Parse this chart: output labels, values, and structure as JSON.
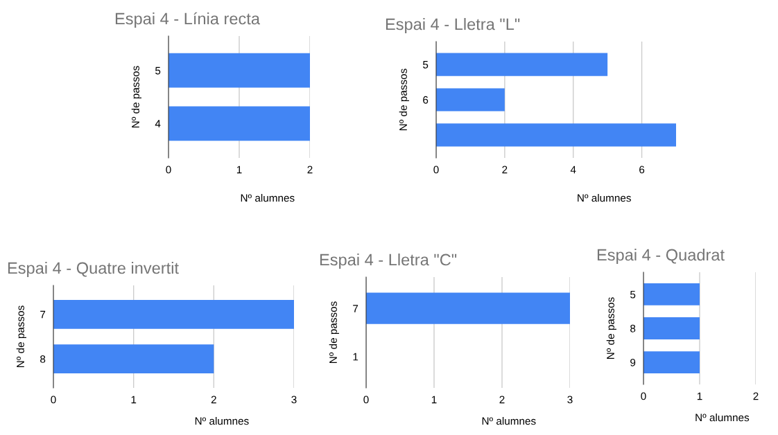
{
  "chart_data": [
    {
      "type": "bar",
      "orientation": "horizontal",
      "title": "Espai 4 - Línia recta",
      "xlabel": "Nº alumnes",
      "ylabel": "Nº de passos",
      "categories": [
        "5",
        "4"
      ],
      "values": [
        2,
        2
      ],
      "color": "#4285f4",
      "xlim": [
        0,
        2
      ],
      "xticks": [
        0,
        1,
        2
      ],
      "grid": "x"
    },
    {
      "type": "bar",
      "orientation": "horizontal",
      "title": "Espai 4 - Lletra \"L\"",
      "xlabel": "Nº alumnes",
      "ylabel": "Nº de passos",
      "categories": [
        "5",
        "6",
        null
      ],
      "values": [
        5,
        2,
        7
      ],
      "color": "#4285f4",
      "xlim": [
        0,
        7
      ],
      "xticks": [
        0,
        2,
        4,
        6
      ],
      "grid": "x"
    },
    {
      "type": "bar",
      "orientation": "horizontal",
      "title": "Espai 4 - Quatre invertit",
      "xlabel": "Nº alumnes",
      "ylabel": "Nº de passos",
      "categories": [
        "7",
        "8"
      ],
      "values": [
        3,
        2
      ],
      "color": "#4285f4",
      "xlim": [
        0,
        3
      ],
      "xticks": [
        0,
        1,
        2,
        3
      ],
      "grid": "x"
    },
    {
      "type": "bar",
      "orientation": "horizontal",
      "title": "Espai 4 - Lletra \"C\"",
      "xlabel": "Nº alumnes",
      "ylabel": "Nº de passos",
      "categories": [
        "7",
        "1"
      ],
      "values": [
        3,
        0
      ],
      "color": "#4285f4",
      "xlim": [
        0,
        3
      ],
      "xticks": [
        0,
        1,
        2,
        3
      ],
      "grid": "x"
    },
    {
      "type": "bar",
      "orientation": "horizontal",
      "title": "Espai 4 - Quadrat",
      "xlabel": "Nº alumnes",
      "ylabel": "Nº de passos",
      "categories": [
        "5",
        "8",
        "9"
      ],
      "values": [
        1,
        1,
        1
      ],
      "color": "#4285f4",
      "xlim": [
        0,
        2
      ],
      "xticks": [
        0,
        1,
        2
      ],
      "grid": "x"
    }
  ]
}
